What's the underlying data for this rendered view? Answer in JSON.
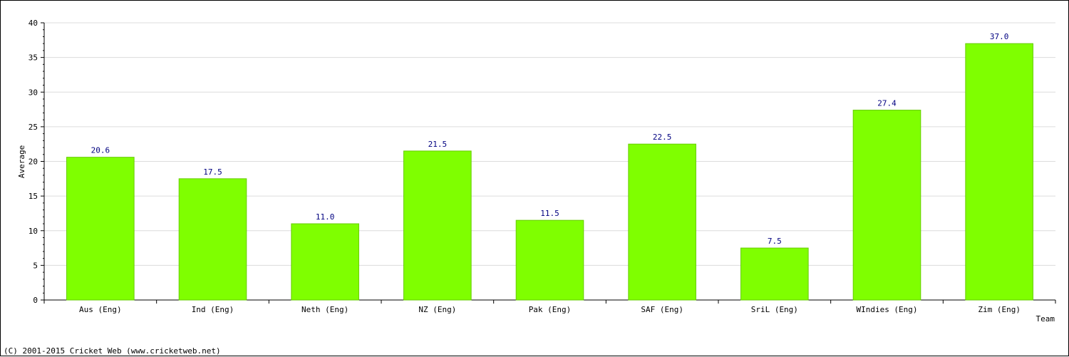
{
  "chart_data": {
    "type": "bar",
    "categories": [
      "Aus (Eng)",
      "Ind (Eng)",
      "Neth (Eng)",
      "NZ (Eng)",
      "Pak (Eng)",
      "SAF (Eng)",
      "SriL (Eng)",
      "WIndies (Eng)",
      "Zim (Eng)"
    ],
    "values": [
      20.6,
      17.5,
      11.0,
      21.5,
      11.5,
      22.5,
      7.5,
      27.4,
      37.0
    ],
    "value_labels": [
      "20.6",
      "17.5",
      "11.0",
      "21.5",
      "11.5",
      "22.5",
      "7.5",
      "27.4",
      "37.0"
    ],
    "title": "",
    "xlabel": "Team",
    "ylabel": "Average",
    "ylim": [
      0,
      40
    ],
    "yticks": [
      0,
      5,
      10,
      15,
      20,
      25,
      30,
      35,
      40
    ],
    "grid": true,
    "bar_color": "#7fff00",
    "bar_edge_color": "#66cc00",
    "value_label_color": "#000080"
  },
  "footer": {
    "copyright": "(C) 2001-2015 Cricket Web (www.cricketweb.net)"
  }
}
